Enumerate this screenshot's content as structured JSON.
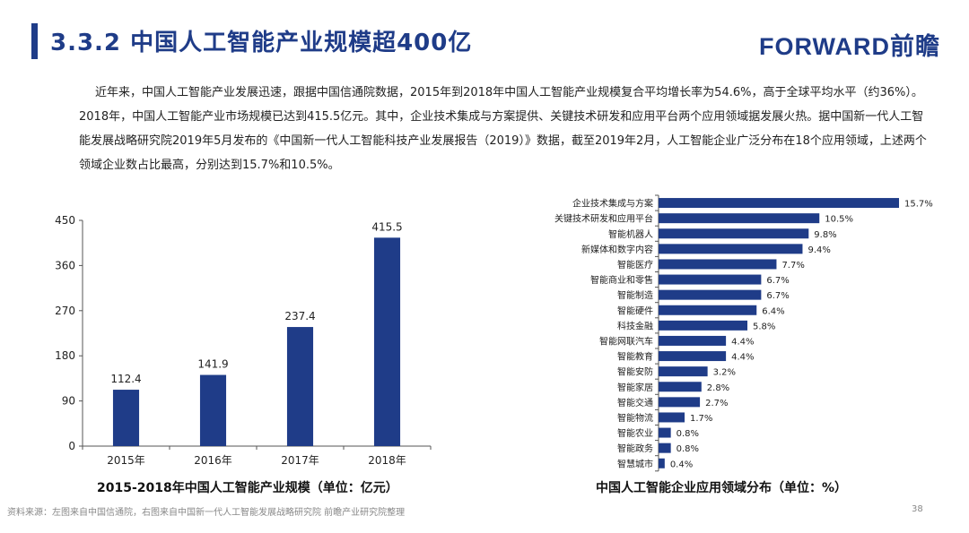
{
  "header": {
    "title": "3.3.2 中国人工智能产业规模超400亿",
    "logo": "FORWARD前瞻"
  },
  "body_text": "近年来，中国人工智能产业发展迅速，跟据中国信通院数据，2015年到2018年中国人工智能产业规模复合平均增长率为54.6%，高于全球平均水平（约36%）。2018年，中国人工智能产业市场规模已达到415.5亿元。其中，企业技术集成与方案提供、关键技术研发和应用平台两个应用领域据发展火热。据中国新一代人工智能发展战略研究院2019年5月发布的《中国新一代人工智能科技产业发展报告（2019）》数据，截至2019年2月，人工智能企业广泛分布在18个应用领域，上述两个领域企业数占比最高，分别达到15.7%和10.5%。",
  "chart_data": [
    {
      "type": "bar",
      "title": "2015-2018年中国人工智能产业规模（单位：亿元）",
      "categories": [
        "2015年",
        "2016年",
        "2017年",
        "2018年"
      ],
      "values": [
        112.4,
        141.9,
        237.4,
        415.5
      ],
      "value_labels": [
        "112.4",
        "141.9",
        "237.4",
        "415.5"
      ],
      "ylim": [
        0,
        450
      ],
      "yticks": [
        0,
        90,
        180,
        270,
        360,
        450
      ],
      "ytick_labels": [
        "0",
        "90",
        "180",
        "270",
        "360",
        "450"
      ],
      "color": "#1f3c88",
      "grid": false
    },
    {
      "type": "bar",
      "orientation": "horizontal",
      "title": "中国人工智能企业应用领域分布（单位：%）",
      "categories": [
        "企业技术集成与方案",
        "关键技术研发和应用平台",
        "智能机器人",
        "新媒体和数字内容",
        "智能医疗",
        "智能商业和零售",
        "智能制造",
        "智能硬件",
        "科技金融",
        "智能网联汽车",
        "智能教育",
        "智能安防",
        "智能家居",
        "智能交通",
        "智能物流",
        "智能农业",
        "智能政务",
        "智慧城市"
      ],
      "values": [
        15.7,
        10.5,
        9.8,
        9.4,
        7.7,
        6.7,
        6.7,
        6.4,
        5.8,
        4.4,
        4.4,
        3.2,
        2.8,
        2.7,
        1.7,
        0.8,
        0.8,
        0.4
      ],
      "value_labels": [
        "15.7%",
        "10.5%",
        "9.8%",
        "9.4%",
        "7.7%",
        "6.7%",
        "6.7%",
        "6.4%",
        "5.8%",
        "4.4%",
        "4.4%",
        "3.2%",
        "2.8%",
        "2.7%",
        "1.7%",
        "0.8%",
        "0.8%",
        "0.4%"
      ],
      "xlim": [
        0,
        15.7
      ],
      "color": "#1f3c88",
      "grid": false
    }
  ],
  "footer": {
    "source": "资料来源：左图来自中国信通院，右图来自中国新一代人工智能发展战略研究院 前瞻产业研究院整理",
    "page": "38"
  }
}
